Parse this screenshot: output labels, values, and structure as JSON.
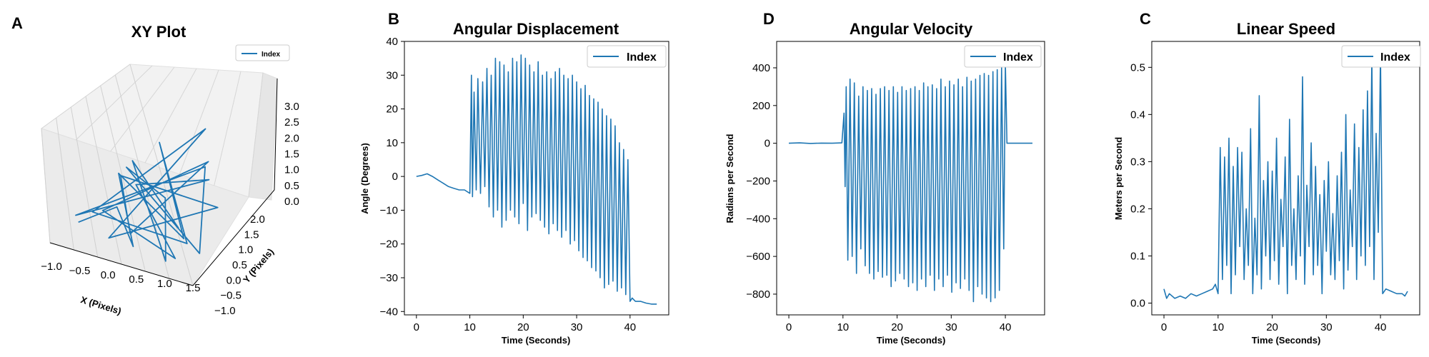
{
  "figure": {
    "panels": [
      {
        "id": "A",
        "title": "XY Plot"
      },
      {
        "id": "B",
        "title": "Angular Displacement"
      },
      {
        "id": "D",
        "title": "Angular Velocity"
      },
      {
        "id": "C",
        "title": "Linear Speed"
      }
    ]
  },
  "colors": {
    "series": "#1f77b4",
    "pane": "#f2f2f2",
    "grid": "#cfcfcf"
  },
  "chart_data": [
    {
      "panel": "A",
      "type": "line",
      "projection": "3d",
      "title": "XY Plot",
      "xlabel": "X (Pixels)",
      "ylabel": "Y (Pixels)",
      "zlabel": "",
      "xticks": [
        "−1.0",
        "−0.5",
        "0.0",
        "0.5",
        "1.0",
        "1.5"
      ],
      "yticks": [
        "−1.0",
        "−0.5",
        "0.0",
        "0.5",
        "1.0",
        "1.5",
        "2.0"
      ],
      "zticks": [
        "0.0",
        "0.5",
        "1.0",
        "1.5",
        "2.0",
        "2.5",
        "3.0"
      ],
      "xlim": [
        -1.3,
        1.6
      ],
      "ylim": [
        -1.0,
        2.4
      ],
      "zlim": [
        -0.2,
        3.2
      ],
      "legend": {
        "position": "top-right",
        "entries": [
          "Index"
        ]
      },
      "grid": true,
      "series": [
        {
          "name": "Index",
          "x": [
            -1.1,
            -0.6,
            0.2,
            -0.8,
            0.9,
            -0.3,
            1.2,
            -1.0,
            0.4,
            -0.2,
            1.4,
            -0.9,
            0.0,
            0.6,
            -0.7,
            1.1,
            -0.4,
            0.8,
            -1.2,
            0.3,
            1.5,
            -0.5,
            0.1,
            1.0,
            -0.8,
            0.7
          ],
          "y": [
            -0.2,
            0.4,
            -0.6,
            0.9,
            0.1,
            1.6,
            -0.4,
            0.2,
            2.1,
            -0.8,
            0.5,
            1.2,
            -0.3,
            1.8,
            0.0,
            -0.7,
            0.8,
            1.4,
            -0.1,
            2.3,
            -0.5,
            0.6,
            1.0,
            -0.9,
            1.5,
            0.3
          ],
          "z": [
            0.0,
            0.3,
            0.1,
            0.9,
            0.2,
            1.6,
            0.5,
            0.1,
            2.0,
            0.3,
            1.1,
            0.6,
            0.2,
            1.3,
            0.4,
            0.2,
            0.8,
            1.1,
            0.1,
            0.7,
            0.4,
            1.4,
            0.5,
            0.2,
            0.9,
            0.3
          ]
        }
      ]
    },
    {
      "panel": "B",
      "type": "line",
      "title": "Angular Displacement",
      "xlabel": "Time (Seconds)",
      "ylabel": "Angle (Degrees)",
      "xlim": [
        -2.25,
        47.25
      ],
      "ylim": [
        -41,
        40
      ],
      "xticks": [
        0,
        10,
        20,
        30,
        40
      ],
      "yticks": [
        40,
        30,
        20,
        10,
        0,
        -10,
        -20,
        -30,
        -40
      ],
      "legend": {
        "position": "top-right",
        "entries": [
          "Index"
        ]
      },
      "grid": false,
      "series": [
        {
          "name": "Index",
          "x": [
            0,
            1,
            2,
            3,
            4,
            5,
            6,
            7,
            8,
            9,
            10,
            10.3,
            10.5,
            10.8,
            11.2,
            11.5,
            12.0,
            12.4,
            12.8,
            13.2,
            13.6,
            14.0,
            14.4,
            14.8,
            15.2,
            15.6,
            16.0,
            16.4,
            16.8,
            17.2,
            17.6,
            18.0,
            18.4,
            18.8,
            19.2,
            19.6,
            20.0,
            20.4,
            20.8,
            21.2,
            21.6,
            22.0,
            22.4,
            22.8,
            23.2,
            23.6,
            24.0,
            24.4,
            24.8,
            25.2,
            25.6,
            26.0,
            26.4,
            26.8,
            27.2,
            27.6,
            28.0,
            28.4,
            28.8,
            29.2,
            29.6,
            30.0,
            30.4,
            30.8,
            31.2,
            31.6,
            32.0,
            32.4,
            32.8,
            33.2,
            33.6,
            34.0,
            34.4,
            34.8,
            35.2,
            35.6,
            36.0,
            36.4,
            36.8,
            37.2,
            37.6,
            38.0,
            38.4,
            38.8,
            39.2,
            39.6,
            40.0,
            40.4,
            41,
            42,
            43,
            44,
            45
          ],
          "y": [
            0,
            0.3,
            0.8,
            0,
            -1,
            -2,
            -3,
            -3.5,
            -4,
            -4,
            -5,
            30,
            -6,
            25,
            -4,
            29,
            -5,
            28,
            -3,
            32,
            -9,
            30,
            -12,
            35,
            -10,
            34,
            -15,
            33,
            -13,
            31,
            -10,
            35,
            -12,
            34,
            -14,
            36,
            -8,
            35,
            -16,
            33,
            -12,
            31,
            -11,
            34,
            -13,
            30,
            -15,
            31,
            -17,
            29,
            -14,
            31,
            -16,
            32,
            -18,
            30,
            -16,
            29,
            -20,
            30,
            -19,
            28,
            -22,
            26,
            -24,
            27,
            -25,
            24,
            -27,
            23,
            -28,
            22,
            -30,
            20,
            -33,
            18,
            -32,
            17,
            -31,
            15,
            -34,
            10,
            -33,
            8,
            -35,
            5,
            -37,
            -36,
            -37,
            -37,
            -37.5,
            -37.8,
            -37.8
          ]
        }
      ]
    },
    {
      "panel": "D",
      "type": "line",
      "title": "Angular Velocity",
      "xlabel": "Time (Seconds)",
      "ylabel": "Radians per Second",
      "xlim": [
        -2.25,
        47.25
      ],
      "ylim": [
        -910,
        540
      ],
      "xticks": [
        0,
        10,
        20,
        30,
        40
      ],
      "yticks": [
        400,
        200,
        0,
        -200,
        -400,
        -600,
        -800
      ],
      "legend": {
        "position": "top-right",
        "entries": [
          "Index"
        ]
      },
      "grid": false,
      "series": [
        {
          "name": "Index",
          "x": [
            0,
            2,
            4,
            6,
            8,
            9.8,
            10.2,
            10.4,
            10.6,
            10.9,
            11.3,
            11.7,
            12.1,
            12.5,
            12.9,
            13.3,
            13.7,
            14.1,
            14.5,
            14.9,
            15.3,
            15.7,
            16.1,
            16.5,
            16.9,
            17.3,
            17.7,
            18.1,
            18.5,
            18.9,
            19.3,
            19.7,
            20.1,
            20.5,
            20.9,
            21.3,
            21.7,
            22.1,
            22.5,
            22.9,
            23.3,
            23.7,
            24.1,
            24.5,
            24.9,
            25.3,
            25.7,
            26.1,
            26.5,
            26.9,
            27.3,
            27.7,
            28.1,
            28.5,
            28.9,
            29.3,
            29.7,
            30.1,
            30.5,
            30.9,
            31.3,
            31.7,
            32.1,
            32.5,
            32.9,
            33.3,
            33.7,
            34.1,
            34.5,
            34.9,
            35.3,
            35.7,
            36.1,
            36.5,
            36.9,
            37.3,
            37.7,
            38.1,
            38.5,
            38.9,
            39.3,
            39.7,
            40.0,
            40.3,
            42,
            45
          ],
          "y": [
            0,
            2,
            -1,
            1,
            0,
            2,
            160,
            -230,
            300,
            -620,
            340,
            -600,
            320,
            -690,
            250,
            -560,
            300,
            -650,
            280,
            -690,
            290,
            -720,
            260,
            -680,
            290,
            -710,
            300,
            -700,
            280,
            -760,
            300,
            -730,
            270,
            -690,
            300,
            -720,
            280,
            -760,
            290,
            -740,
            300,
            -780,
            280,
            -720,
            320,
            -760,
            300,
            -700,
            310,
            -780,
            290,
            -720,
            340,
            -760,
            300,
            -700,
            330,
            -790,
            310,
            -740,
            340,
            -770,
            300,
            -720,
            350,
            -780,
            330,
            -840,
            340,
            -760,
            360,
            -800,
            370,
            -820,
            360,
            -840,
            380,
            -820,
            390,
            -780,
            400,
            -560,
            420,
            0,
            0,
            0
          ]
        }
      ]
    },
    {
      "panel": "C",
      "type": "line",
      "title": "Linear Speed",
      "xlabel": "Time (Seconds)",
      "ylabel": "Meters per Second",
      "xlim": [
        -2.25,
        47.25
      ],
      "ylim": [
        -0.025,
        0.555
      ],
      "xticks": [
        0,
        10,
        20,
        30,
        40
      ],
      "yticks": [
        0.5,
        0.4,
        0.3,
        0.2,
        0.1,
        0.0
      ],
      "legend": {
        "position": "top-right",
        "entries": [
          "Index"
        ]
      },
      "grid": false,
      "series": [
        {
          "name": "Index",
          "x": [
            0,
            0.5,
            1,
            2,
            3,
            4,
            5,
            6,
            7,
            8,
            9,
            9.5,
            10,
            10.4,
            10.8,
            11.2,
            11.6,
            12.0,
            12.4,
            12.8,
            13.2,
            13.6,
            14.0,
            14.4,
            14.8,
            15.2,
            15.6,
            16.0,
            16.4,
            16.8,
            17.2,
            17.6,
            18.0,
            18.4,
            18.8,
            19.2,
            19.6,
            20.0,
            20.4,
            20.8,
            21.2,
            21.6,
            22.0,
            22.4,
            22.8,
            23.2,
            23.6,
            24.0,
            24.4,
            24.8,
            25.2,
            25.6,
            26.0,
            26.4,
            26.8,
            27.2,
            27.6,
            28.0,
            28.4,
            28.8,
            29.2,
            29.6,
            30.0,
            30.4,
            30.8,
            31.2,
            31.6,
            32.0,
            32.4,
            32.8,
            33.2,
            33.6,
            34.0,
            34.4,
            34.8,
            35.2,
            35.6,
            36.0,
            36.4,
            36.8,
            37.2,
            37.6,
            38.0,
            38.4,
            38.8,
            39.2,
            39.6,
            40.0,
            40.4,
            41,
            42,
            43,
            44,
            44.5,
            45
          ],
          "y": [
            0.03,
            0.01,
            0.02,
            0.01,
            0.015,
            0.01,
            0.02,
            0.015,
            0.02,
            0.025,
            0.03,
            0.04,
            0.02,
            0.33,
            0.05,
            0.31,
            0.08,
            0.35,
            0.02,
            0.29,
            0.06,
            0.33,
            0.12,
            0.32,
            0.05,
            0.2,
            0.08,
            0.37,
            0.02,
            0.18,
            0.06,
            0.44,
            0.03,
            0.26,
            0.1,
            0.3,
            0.05,
            0.28,
            0.09,
            0.35,
            0.04,
            0.22,
            0.12,
            0.31,
            0.02,
            0.39,
            0.08,
            0.2,
            0.05,
            0.27,
            0.1,
            0.48,
            0.04,
            0.25,
            0.12,
            0.34,
            0.06,
            0.29,
            0.08,
            0.23,
            0.02,
            0.26,
            0.11,
            0.3,
            0.06,
            0.19,
            0.05,
            0.27,
            0.09,
            0.32,
            0.03,
            0.4,
            0.07,
            0.24,
            0.12,
            0.38,
            0.05,
            0.33,
            0.1,
            0.41,
            0.08,
            0.45,
            0.12,
            0.52,
            0.05,
            0.36,
            0.15,
            0.53,
            0.02,
            0.03,
            0.025,
            0.02,
            0.02,
            0.015,
            0.025
          ]
        }
      ]
    }
  ]
}
